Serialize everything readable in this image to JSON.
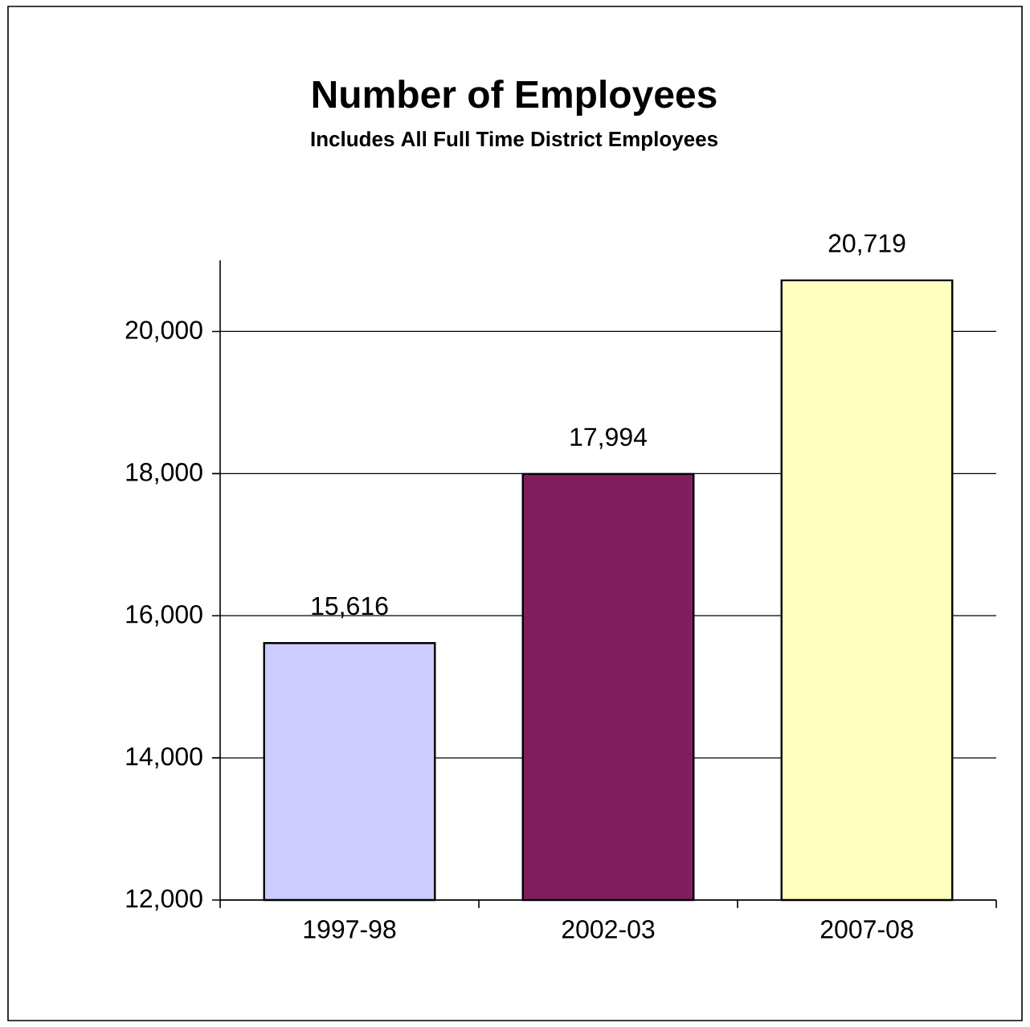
{
  "chart_data": {
    "type": "bar",
    "title": "Number of Employees",
    "subtitle": "Includes All Full Time District Employees",
    "categories": [
      "1997-98",
      "2002-03",
      "2007-08"
    ],
    "values": [
      15616,
      17994,
      20719
    ],
    "value_labels": [
      "15,616",
      "17,994",
      "20,719"
    ],
    "colors": [
      "#ccccff",
      "#7f1f5f",
      "#ffffc0"
    ],
    "ylim": [
      12000,
      21000
    ],
    "yticks": [
      {
        "value": 12000,
        "label": "12,000"
      },
      {
        "value": 14000,
        "label": "14,000"
      },
      {
        "value": 16000,
        "label": "16,000"
      },
      {
        "value": 18000,
        "label": "18,000"
      },
      {
        "value": 20000,
        "label": "20,000"
      }
    ],
    "grid": "y"
  }
}
